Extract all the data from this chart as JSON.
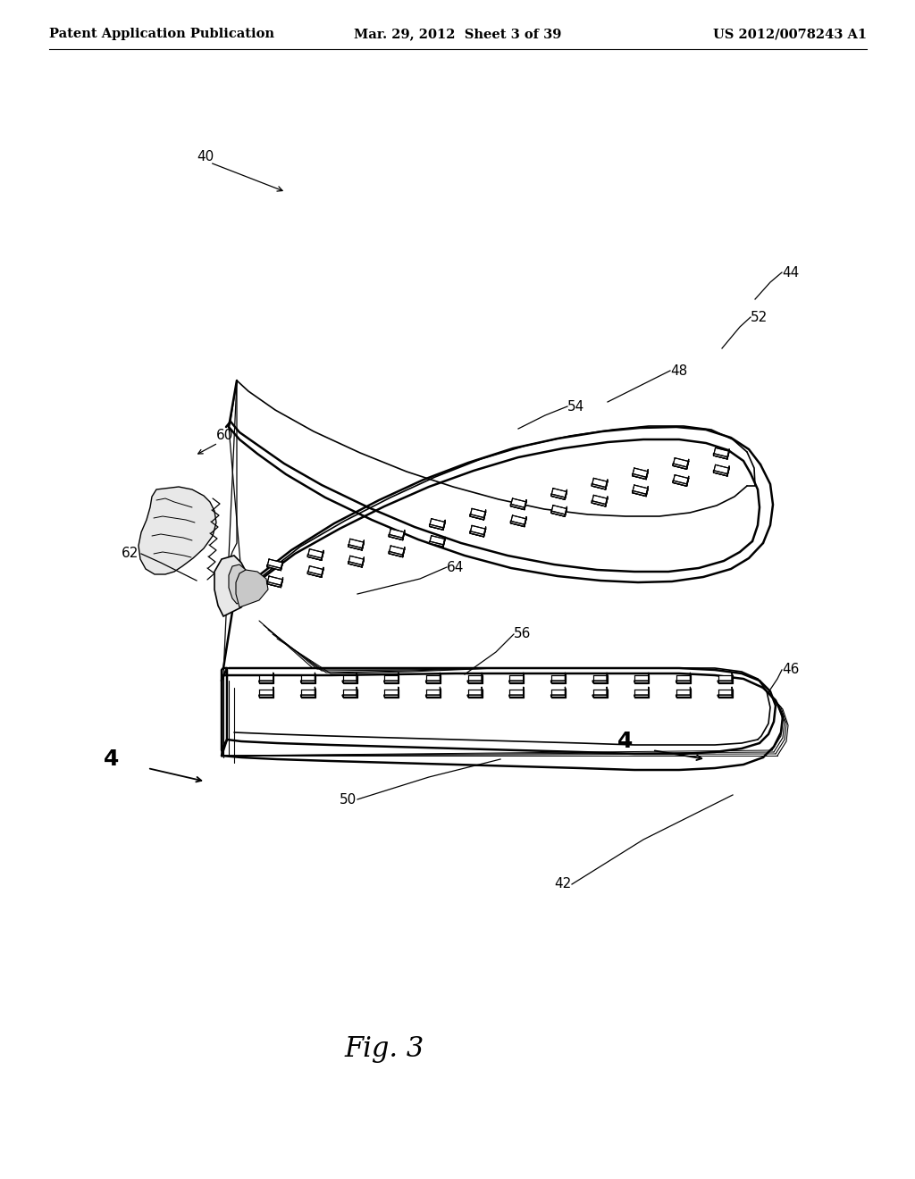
{
  "background_color": "#ffffff",
  "header_left": "Patent Application Publication",
  "header_center": "Mar. 29, 2012  Sheet 3 of 39",
  "header_right": "US 2012/0078243 A1",
  "figure_label": "Fig. 3",
  "header_fontsize": 10.5,
  "figure_label_fontsize": 22
}
